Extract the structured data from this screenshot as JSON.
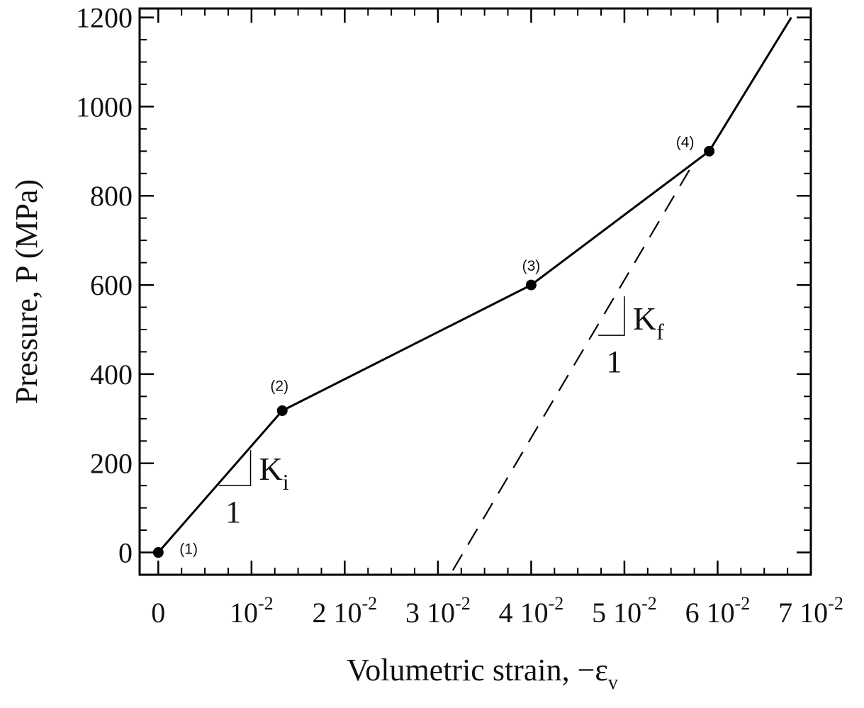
{
  "chart_data": {
    "type": "line",
    "xlabel": "Volumetric strain, −ε",
    "xlabel_subscript": "v",
    "ylabel": "Pressure, P (MPa)",
    "xlim": [
      -0.002,
      0.07
    ],
    "ylim": [
      -50,
      1220
    ],
    "x_ticks": [
      {
        "value": 0,
        "mantissa": "0",
        "exponent": ""
      },
      {
        "value": 0.01,
        "mantissa": "10",
        "exponent": "-2"
      },
      {
        "value": 0.02,
        "mantissa": "2 10",
        "exponent": "-2"
      },
      {
        "value": 0.03,
        "mantissa": "3 10",
        "exponent": "-2"
      },
      {
        "value": 0.04,
        "mantissa": "4 10",
        "exponent": "-2"
      },
      {
        "value": 0.05,
        "mantissa": "5 10",
        "exponent": "-2"
      },
      {
        "value": 0.06,
        "mantissa": "6 10",
        "exponent": "-2"
      },
      {
        "value": 0.07,
        "mantissa": "7 10",
        "exponent": "-2"
      }
    ],
    "y_ticks": [
      0,
      200,
      400,
      600,
      800,
      1000,
      1200
    ],
    "grid": false,
    "series": [
      {
        "style": "solid",
        "x": [
          0.0,
          0.0133,
          0.04,
          0.0591,
          0.0679
        ],
        "y": [
          0,
          318,
          600,
          900,
          1200
        ]
      },
      {
        "style": "dashed",
        "x": [
          0.0316,
          0.0576
        ],
        "y": [
          -40,
          880
        ]
      }
    ],
    "points": [
      {
        "label": "(1)",
        "x": 0.0,
        "y": 0
      },
      {
        "label": "(2)",
        "x": 0.0133,
        "y": 318
      },
      {
        "label": "(3)",
        "x": 0.04,
        "y": 600
      },
      {
        "label": "(4)",
        "x": 0.0591,
        "y": 900
      }
    ],
    "slope_annotations": [
      {
        "symbol": "K",
        "subscript": "i",
        "run_label": "1",
        "x0": 0.0065,
        "x1": 0.0099,
        "y0": 150
      },
      {
        "symbol": "K",
        "subscript": "f",
        "run_label": "1",
        "x0": 0.0472,
        "x1": 0.05,
        "y0": 487
      }
    ]
  }
}
